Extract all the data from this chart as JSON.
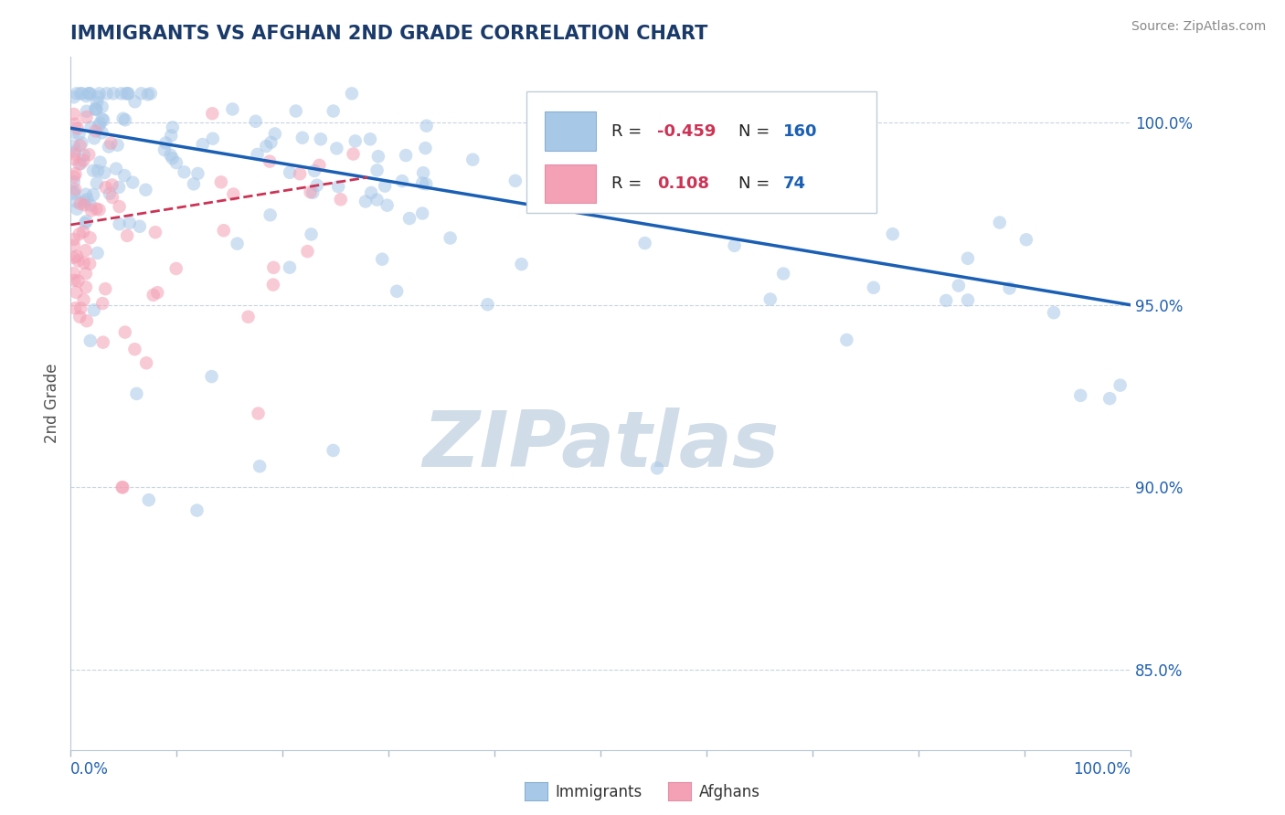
{
  "title": "IMMIGRANTS VS AFGHAN 2ND GRADE CORRELATION CHART",
  "source_text": "Source: ZipAtlas.com",
  "ylabel": "2nd Grade",
  "y_tick_labels": [
    "85.0%",
    "90.0%",
    "95.0%",
    "100.0%"
  ],
  "y_tick_values": [
    0.85,
    0.9,
    0.95,
    1.0
  ],
  "x_range": [
    0.0,
    1.0
  ],
  "y_range": [
    0.828,
    1.018
  ],
  "blue_line_y_start": 0.9985,
  "blue_line_y_end": 0.95,
  "pink_line_x_end": 0.28,
  "pink_line_y_start": 0.972,
  "pink_line_y_end": 0.985,
  "scatter_size": 110,
  "scatter_alpha": 0.55,
  "blue_scatter_color": "#a8c8e8",
  "pink_scatter_color": "#f4a0b5",
  "blue_line_color": "#1a5fb4",
  "pink_line_color": "#cc3355",
  "watermark_color": "#d0dce8",
  "title_color": "#1a3a6a",
  "title_fontsize": 15,
  "grid_color": "#c8d4e0",
  "axis_label_color": "#505050",
  "tick_label_color": "#2060b0",
  "legend_R1": "-0.459",
  "legend_N1": "160",
  "legend_R2": "0.108",
  "legend_N2": "74",
  "legend_color_R": "#cc3355",
  "legend_color_N": "#1a5fb4"
}
